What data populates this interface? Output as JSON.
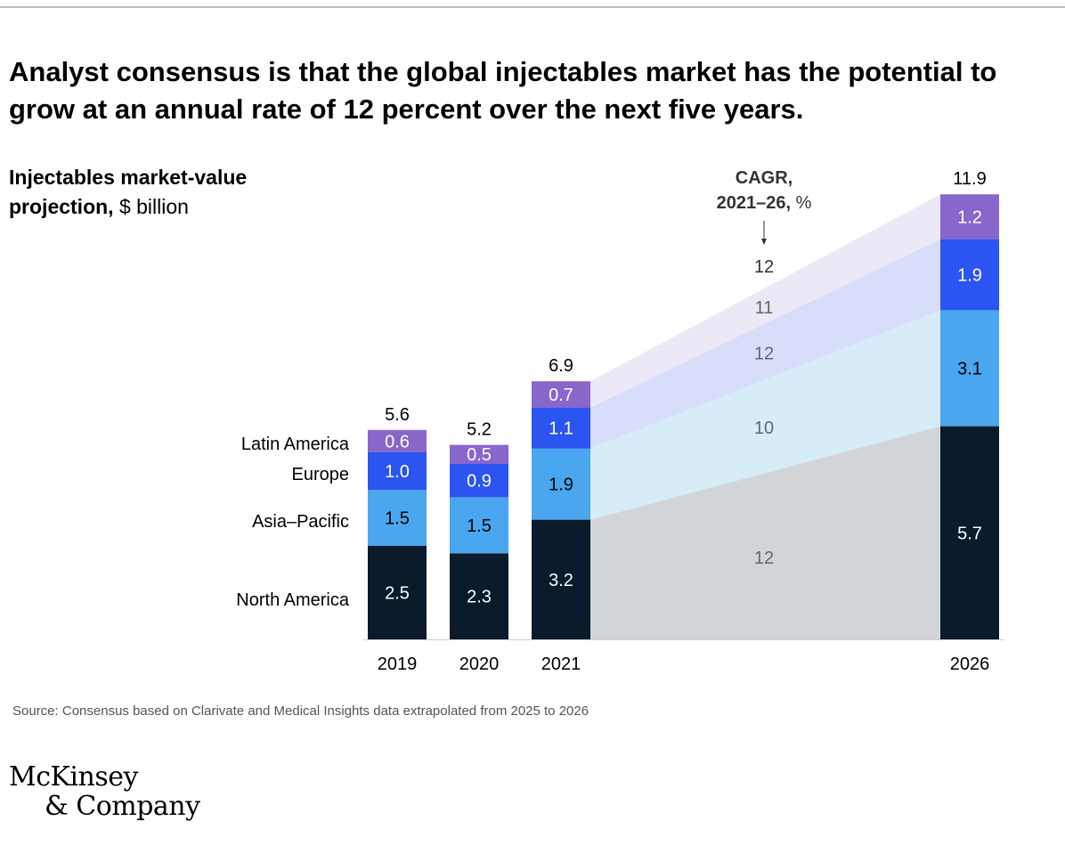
{
  "headline": "Analyst consensus is that the global injectables market has the potential to grow at an annual rate of 12 percent over the next five years.",
  "chart_label": {
    "title": "Injectables market-value projection,",
    "unit": "$ billion"
  },
  "source": "Source: Consensus based on Clarivate and Medical Insights data extrapolated from 2025 to 2026",
  "logo": {
    "line1": "McKinsey",
    "line2": "& Company"
  },
  "colors": {
    "north_america": "#0b1b2b",
    "asia_pacific": "#4aa6ee",
    "europe": "#2b54f0",
    "latin_america": "#8866cc",
    "band_north_america": "#d2d5d8",
    "band_asia_pacific": "#d6ecf9",
    "band_europe": "#d8ddfa",
    "band_latin_america": "#ece8f5"
  },
  "chart_data": {
    "type": "bar",
    "stacked": true,
    "title": "",
    "ylabel": "$ billion",
    "categories": [
      "2019",
      "2020",
      "2021",
      "2026"
    ],
    "series": [
      {
        "name": "North America",
        "values": [
          2.5,
          2.3,
          3.2,
          5.7
        ]
      },
      {
        "name": "Asia–Pacific",
        "values": [
          1.5,
          1.5,
          1.9,
          3.1
        ]
      },
      {
        "name": "Europe",
        "values": [
          1.0,
          0.9,
          1.1,
          1.9
        ]
      },
      {
        "name": "Latin America",
        "values": [
          0.6,
          0.5,
          0.7,
          1.2
        ]
      }
    ],
    "totals": [
      "5.6",
      "5.2",
      "6.9",
      "11.9"
    ],
    "value_labels": [
      [
        "2.5",
        "2.3",
        "3.2",
        "5.7"
      ],
      [
        "1.5",
        "1.5",
        "1.9",
        "3.1"
      ],
      [
        "1.0",
        "0.9",
        "1.1",
        "1.9"
      ],
      [
        "0.6",
        "0.5",
        "0.7",
        "1.2"
      ]
    ],
    "cagr": {
      "header_line1": "CAGR,",
      "header_line2": "2021–26,",
      "header_unit": "%",
      "total": "12",
      "values": [
        "12",
        "10",
        "12",
        "11"
      ]
    }
  }
}
